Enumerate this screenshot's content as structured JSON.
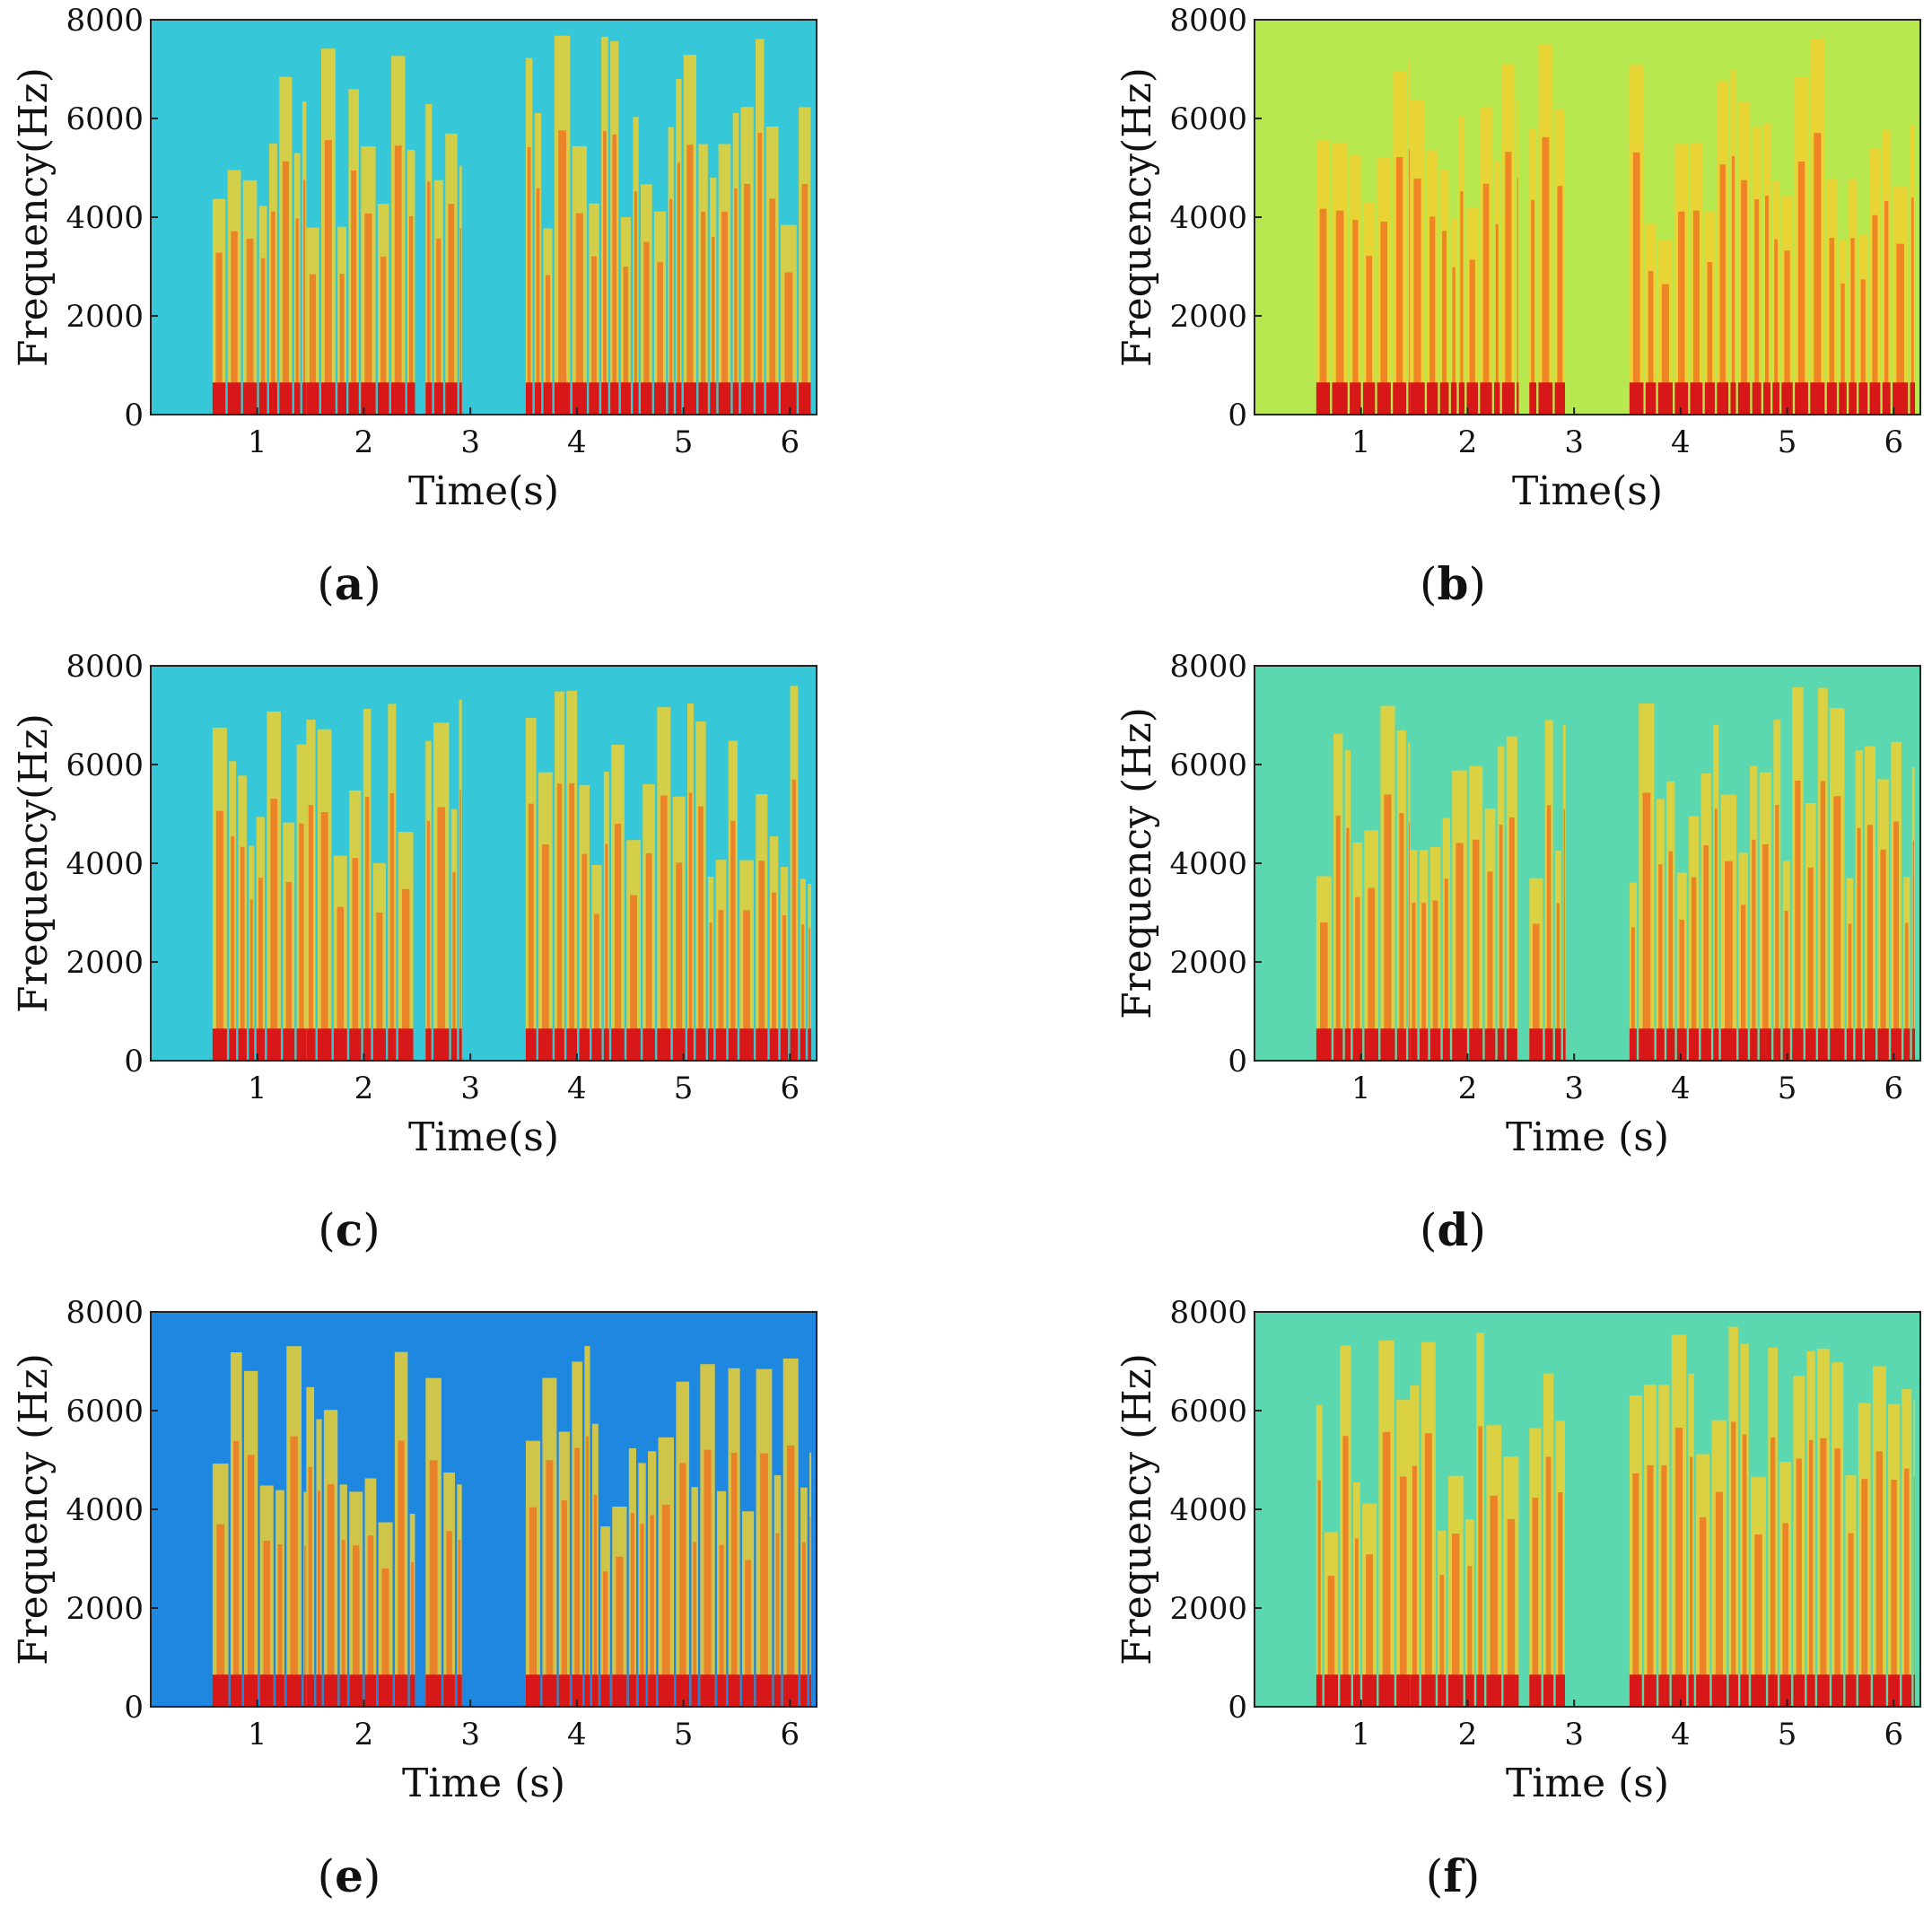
{
  "chart_data": [
    {
      "type": "heatmap",
      "panel_label": "a",
      "xlabel": "Time(s)",
      "ylabel": "Frequency(Hz)",
      "xlim": [
        0,
        6.25
      ],
      "ylim": [
        0,
        8000
      ],
      "xticks": [
        "1",
        "2",
        "3",
        "4",
        "5",
        "6"
      ],
      "yticks": [
        "0",
        "2000",
        "4000",
        "6000",
        "8000"
      ],
      "background": "clean",
      "speech_intervals": [
        [
          0.58,
          1.46
        ],
        [
          1.46,
          2.48
        ],
        [
          2.58,
          2.92
        ],
        [
          3.52,
          6.2
        ]
      ]
    },
    {
      "type": "heatmap",
      "panel_label": "b",
      "xlabel": "Time(s)",
      "ylabel": "Frequency(Hz)",
      "xlim": [
        0,
        6.25
      ],
      "ylim": [
        0,
        8000
      ],
      "xticks": [
        "1",
        "2",
        "3",
        "4",
        "5",
        "6"
      ],
      "yticks": [
        "0",
        "2000",
        "4000",
        "6000",
        "8000"
      ],
      "background": "noisy",
      "speech_intervals": [
        [
          0.58,
          1.46
        ],
        [
          1.46,
          2.48
        ],
        [
          2.58,
          2.92
        ],
        [
          3.52,
          6.2
        ]
      ]
    },
    {
      "type": "heatmap",
      "panel_label": "c",
      "xlabel": "Time(s)",
      "ylabel": "Frequency(Hz)",
      "xlim": [
        0,
        6.25
      ],
      "ylim": [
        0,
        8000
      ],
      "xticks": [
        "1",
        "2",
        "3",
        "4",
        "5",
        "6"
      ],
      "yticks": [
        "0",
        "2000",
        "4000",
        "6000",
        "8000"
      ],
      "background": "clean",
      "speech_intervals": [
        [
          0.58,
          1.46
        ],
        [
          1.46,
          2.48
        ],
        [
          2.58,
          2.92
        ],
        [
          3.52,
          6.2
        ]
      ]
    },
    {
      "type": "heatmap",
      "panel_label": "d",
      "xlabel": "Time (s)",
      "ylabel": "Frequency (Hz)",
      "xlim": [
        0,
        6.25
      ],
      "ylim": [
        0,
        8000
      ],
      "xticks": [
        "1",
        "2",
        "3",
        "4",
        "5",
        "6"
      ],
      "yticks": [
        "0",
        "2000",
        "4000",
        "6000",
        "8000"
      ],
      "background": "enhanced",
      "speech_intervals": [
        [
          0.58,
          1.46
        ],
        [
          1.46,
          2.48
        ],
        [
          2.58,
          2.92
        ],
        [
          3.52,
          6.2
        ]
      ]
    },
    {
      "type": "heatmap",
      "panel_label": "e",
      "xlabel": "Time (s)",
      "ylabel": "Frequency (Hz)",
      "xlim": [
        0,
        6.25
      ],
      "ylim": [
        0,
        8000
      ],
      "xticks": [
        "1",
        "2",
        "3",
        "4",
        "5",
        "6"
      ],
      "yticks": [
        "0",
        "2000",
        "4000",
        "6000",
        "8000"
      ],
      "background": "dark",
      "speech_intervals": [
        [
          0.58,
          1.46
        ],
        [
          1.46,
          2.48
        ],
        [
          2.58,
          2.92
        ],
        [
          3.52,
          6.2
        ]
      ]
    },
    {
      "type": "heatmap",
      "panel_label": "f",
      "xlabel": "Time (s)",
      "ylabel": "Frequency (Hz)",
      "xlim": [
        0,
        6.25
      ],
      "ylim": [
        0,
        8000
      ],
      "xticks": [
        "1",
        "2",
        "3",
        "4",
        "5",
        "6"
      ],
      "yticks": [
        "0",
        "2000",
        "4000",
        "6000",
        "8000"
      ],
      "background": "enhanced",
      "speech_intervals": [
        [
          0.58,
          1.46
        ],
        [
          1.46,
          2.48
        ],
        [
          2.58,
          2.92
        ],
        [
          3.52,
          6.2
        ]
      ]
    }
  ],
  "colors": {
    "background_clean": "#36c8d8",
    "background_noisy": "#b8e850",
    "background_enhanced": "#5cd8b0",
    "background_dark": "#1e88e0",
    "speech_mid": "#f0d030",
    "speech_high": "#f07020",
    "speech_peak": "#d81818"
  }
}
